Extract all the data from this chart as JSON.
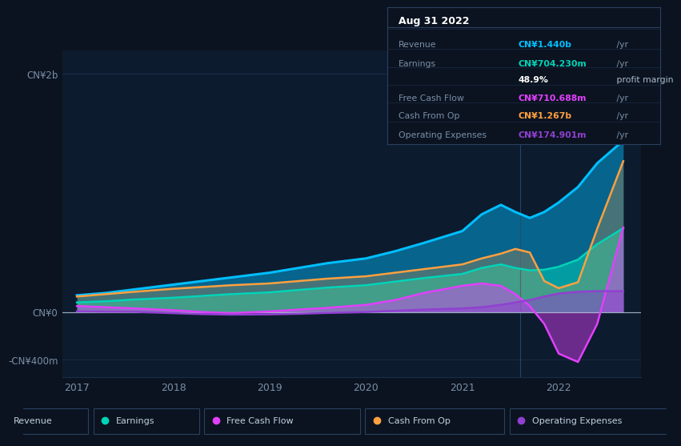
{
  "bg_color": "#0b1320",
  "plot_bg_color": "#0d1b2e",
  "grid_color": "#1a2e4a",
  "text_color": "#7a8fa8",
  "title_color": "#ffffff",
  "years_x": [
    2017.0,
    2017.3,
    2017.6,
    2018.0,
    2018.3,
    2018.6,
    2019.0,
    2019.3,
    2019.6,
    2020.0,
    2020.3,
    2020.6,
    2021.0,
    2021.2,
    2021.4,
    2021.55,
    2021.7,
    2021.85,
    2022.0,
    2022.2,
    2022.4,
    2022.67
  ],
  "revenue": [
    140,
    160,
    190,
    230,
    260,
    290,
    330,
    370,
    410,
    450,
    510,
    580,
    680,
    820,
    900,
    840,
    790,
    840,
    920,
    1050,
    1250,
    1440
  ],
  "earnings": [
    80,
    90,
    105,
    120,
    135,
    150,
    165,
    185,
    205,
    225,
    255,
    285,
    320,
    370,
    400,
    370,
    350,
    355,
    380,
    440,
    570,
    704
  ],
  "free_cash_flow": [
    50,
    40,
    30,
    15,
    0,
    -10,
    5,
    20,
    35,
    60,
    100,
    160,
    220,
    240,
    220,
    150,
    50,
    -100,
    -350,
    -420,
    -100,
    710
  ],
  "cash_from_op": [
    130,
    150,
    170,
    195,
    210,
    225,
    240,
    260,
    280,
    300,
    330,
    360,
    400,
    450,
    490,
    530,
    500,
    260,
    200,
    250,
    700,
    1267
  ],
  "op_expenses": [
    5,
    3,
    2,
    -10,
    -18,
    -22,
    -20,
    -15,
    -8,
    0,
    10,
    20,
    30,
    40,
    60,
    80,
    100,
    130,
    155,
    170,
    175,
    175
  ],
  "colors": {
    "revenue": "#00bfff",
    "earnings": "#00d4b8",
    "free_cash_flow": "#e040fb",
    "cash_from_op": "#ffa040",
    "op_expenses": "#9040d0"
  },
  "ytick_labels": [
    "-CN¥400m",
    "CN¥0",
    "CN¥2b"
  ],
  "ytick_values": [
    -400,
    0,
    2000
  ],
  "xticks": [
    2017,
    2018,
    2019,
    2020,
    2021,
    2022
  ],
  "ylim": [
    -550,
    2200
  ],
  "xlim": [
    2016.85,
    2022.85
  ],
  "vline_x": 2021.6,
  "tooltip": {
    "date": "Aug 31 2022",
    "revenue_label": "Revenue",
    "revenue_val": "CN¥1.440b",
    "earnings_label": "Earnings",
    "earnings_val": "CN¥704.230m",
    "margin_val": "48.9%",
    "margin_label": " profit margin",
    "fcf_label": "Free Cash Flow",
    "fcf_val": "CN¥710.688m",
    "cfo_label": "Cash From Op",
    "cfo_val": "CN¥1.267b",
    "opex_label": "Operating Expenses",
    "opex_val": "CN¥174.901m",
    "yr": " /yr"
  },
  "legend_items": [
    {
      "label": "Revenue",
      "color": "#00bfff"
    },
    {
      "label": "Earnings",
      "color": "#00d4b8"
    },
    {
      "label": "Free Cash Flow",
      "color": "#e040fb"
    },
    {
      "label": "Cash From Op",
      "color": "#ffa040"
    },
    {
      "label": "Operating Expenses",
      "color": "#9040d0"
    }
  ]
}
